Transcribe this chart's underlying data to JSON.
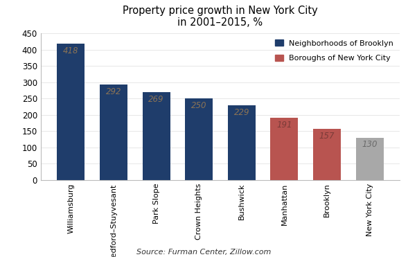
{
  "categories": [
    "Williamsburg",
    "Bedford–Stuyvesant",
    "Park Slope",
    "Crown Heights",
    "Bushwick",
    "Manhattan",
    "Brooklyn",
    "New York City"
  ],
  "values": [
    418,
    292,
    269,
    250,
    229,
    191,
    157,
    130
  ],
  "bar_colors": [
    "#1F3D6B",
    "#1F3D6B",
    "#1F3D6B",
    "#1F3D6B",
    "#1F3D6B",
    "#B85450",
    "#B85450",
    "#A8A8A8"
  ],
  "title_line1": "Property price growth in New York City",
  "title_line2": "in 2001–2015, %",
  "source": "Source: Furman Center, Zillow.com",
  "legend": [
    {
      "label": "Neighborhoods of Brooklyn",
      "color": "#1F3D6B"
    },
    {
      "label": "Boroughs of New York City",
      "color": "#B85450"
    }
  ],
  "ylim": [
    0,
    450
  ],
  "yticks": [
    0,
    50,
    100,
    150,
    200,
    250,
    300,
    350,
    400,
    450
  ],
  "label_color_dark_bar": "#8B7355",
  "label_color_red_bar": "#7B3B38",
  "label_color_gray_bar": "#6B6B6B",
  "figsize": [
    5.89,
    3.71
  ],
  "dpi": 100
}
